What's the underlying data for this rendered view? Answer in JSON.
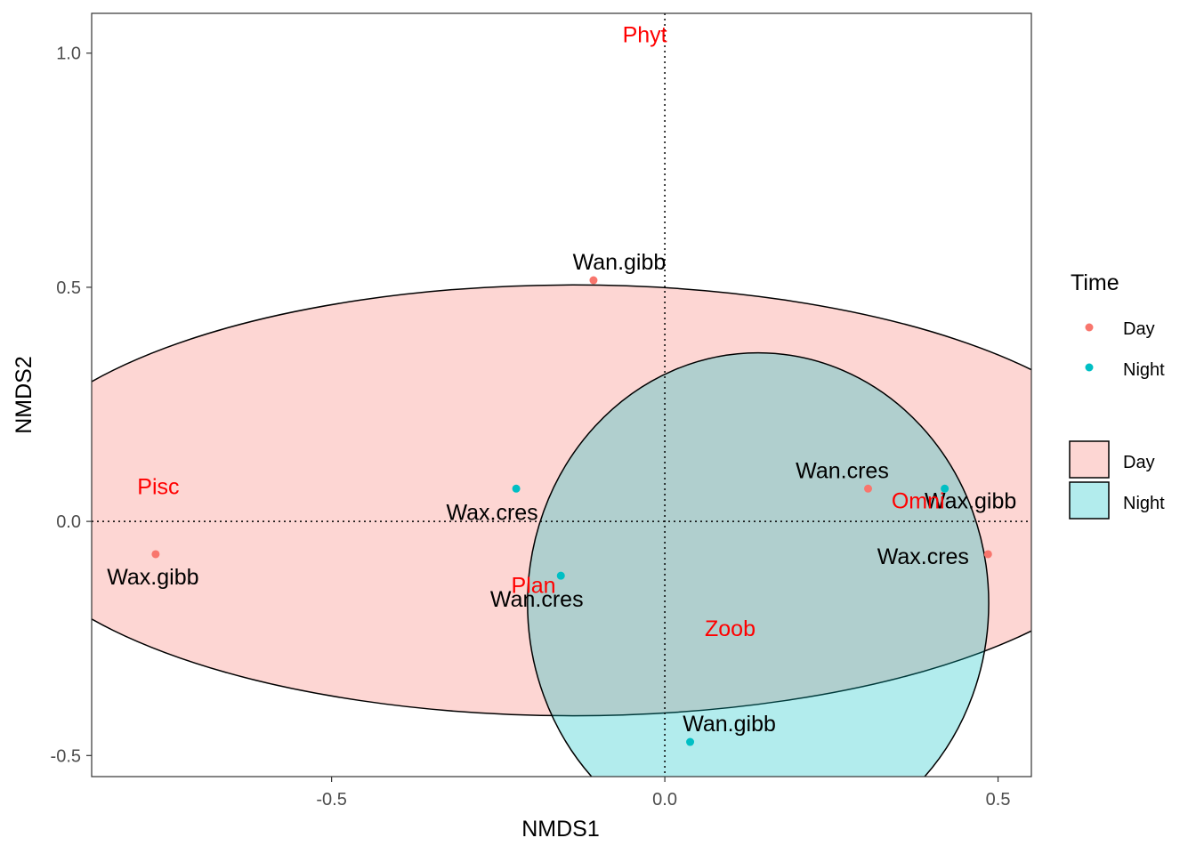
{
  "chart_data": {
    "type": "scatter",
    "xlabel": "NMDS1",
    "ylabel": "NMDS2",
    "xlim": [
      -0.86,
      0.55
    ],
    "ylim": [
      -0.545,
      1.085
    ],
    "x_ticks": [
      -0.5,
      0.0,
      0.5
    ],
    "x_tick_labels": [
      "-0.5",
      "0.0",
      "0.5"
    ],
    "y_ticks": [
      -0.5,
      0.0,
      0.5,
      1.0
    ],
    "y_tick_labels": [
      "-0.5",
      "0.0",
      "0.5",
      "1.0"
    ],
    "grid": false,
    "reference_lines": {
      "x": 0,
      "y": 0,
      "style": "dotted"
    },
    "colors": {
      "Day": "#F8766D",
      "Night": "#00BFC4"
    },
    "series": [
      {
        "name": "Day",
        "points": [
          {
            "label": "Wan.gibb",
            "x": -0.107,
            "y": 0.515
          },
          {
            "label": "Wax.gibb",
            "x": -0.764,
            "y": -0.07
          },
          {
            "label": "Wan.cres",
            "x": 0.305,
            "y": 0.07
          },
          {
            "label": "Wax.cres",
            "x": 0.485,
            "y": -0.07
          }
        ]
      },
      {
        "name": "Night",
        "points": [
          {
            "label": "Wax.cres",
            "x": -0.223,
            "y": 0.07
          },
          {
            "label": "Wan.cres",
            "x": -0.156,
            "y": -0.116
          },
          {
            "label": "Wax.gibb",
            "x": 0.42,
            "y": 0.07
          },
          {
            "label": "Wan.gibb",
            "x": 0.038,
            "y": -0.471
          }
        ]
      }
    ],
    "ellipses": [
      {
        "name": "Day",
        "cx": -0.138,
        "cy": 0.045,
        "rx": 0.865,
        "ry": 0.46
      },
      {
        "name": "Night",
        "cx": 0.14,
        "cy": -0.175,
        "rx": 0.346,
        "ry": 0.535
      }
    ],
    "variables": [
      {
        "label": "Phyt",
        "x": -0.03,
        "y": 1.04
      },
      {
        "label": "Pisc",
        "x": -0.76,
        "y": 0.075
      },
      {
        "label": "Omni",
        "x": 0.38,
        "y": 0.045
      },
      {
        "label": "Plan",
        "x": -0.197,
        "y": -0.136
      },
      {
        "label": "Zoob",
        "x": 0.098,
        "y": -0.228
      }
    ],
    "legend": {
      "position": "right",
      "title": "Time",
      "entries": [
        "Day",
        "Night"
      ],
      "fill_entries": [
        "Day",
        "Night"
      ]
    }
  }
}
